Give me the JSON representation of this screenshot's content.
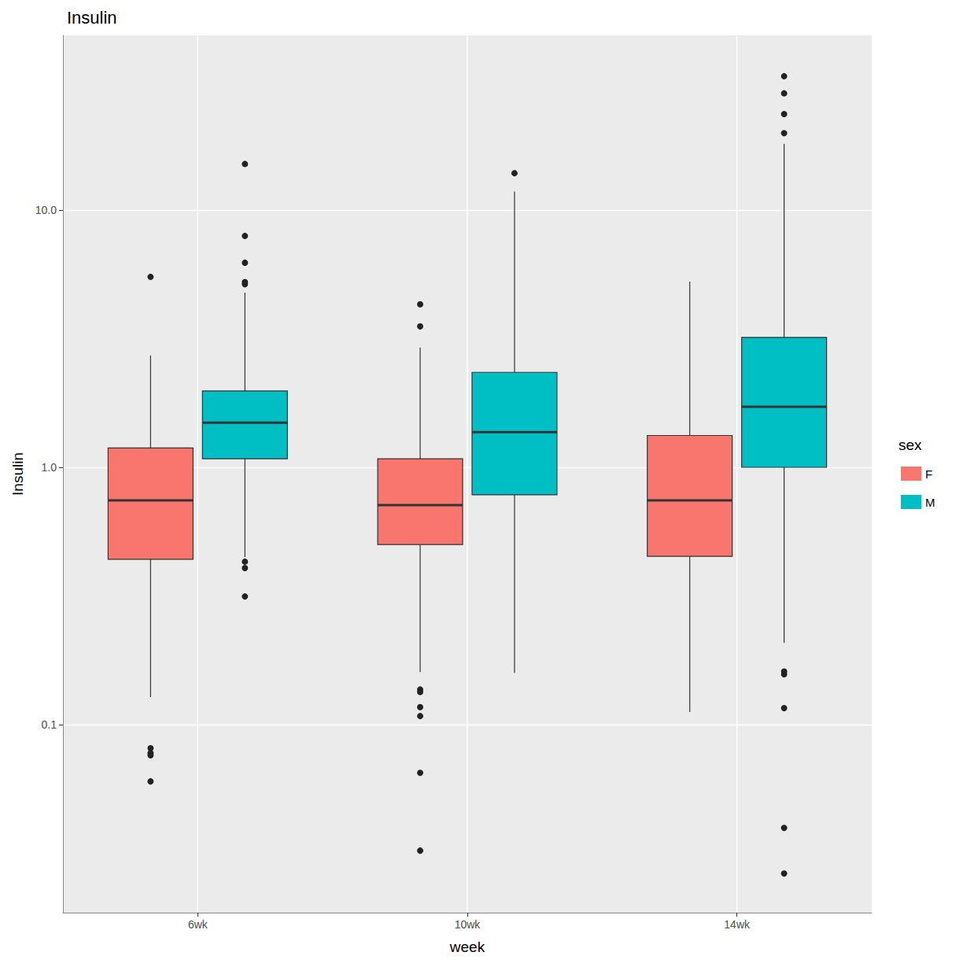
{
  "chart_data": {
    "type": "boxplot",
    "title": "Insulin",
    "x_label": "week",
    "y_label": "Insulin",
    "categories": [
      "6wk",
      "10wk",
      "14wk"
    ],
    "series": [
      {
        "name": "F",
        "color": "#F8766D",
        "values": [
          [
            0.128,
            0.439,
            0.744,
            1.19,
            2.72
          ],
          [
            0.16,
            0.501,
            0.713,
            1.08,
            2.92
          ],
          [
            0.112,
            0.451,
            0.744,
            1.33,
            5.27
          ]
        ],
        "outliers": [
          [
            5.5,
            0.081,
            0.0776,
            0.076,
            0.0602
          ],
          [
            4.3,
            3.53,
            0.137,
            0.134,
            0.117,
            0.108,
            0.065,
            0.0324
          ],
          []
        ]
      },
      {
        "name": "M",
        "color": "#00BFC4",
        "values": [
          [
            0.448,
            1.08,
            1.49,
            1.98,
            4.77
          ],
          [
            0.159,
            0.782,
            1.37,
            2.34,
            11.8
          ],
          [
            0.208,
            1.0,
            1.72,
            3.2,
            18.1
          ]
        ],
        "outliers": [
          [
            15.1,
            7.93,
            6.24,
            5.25,
            5.15,
            0.43,
            0.406,
            0.315
          ],
          [
            13.9
          ],
          [
            33.1,
            28.4,
            23.6,
            19.9,
            0.161,
            0.157,
            0.116,
            0.0397,
            0.0264
          ]
        ]
      }
    ],
    "ylim": [
      0.0186,
      47.7
    ],
    "yticks": [
      {
        "value": 0.1,
        "label": "0.1"
      },
      {
        "value": 1,
        "label": "1.0"
      },
      {
        "value": 10,
        "label": "10.0"
      }
    ],
    "log": "y",
    "grid": true,
    "legend": "right",
    "legend_title": "sex"
  }
}
